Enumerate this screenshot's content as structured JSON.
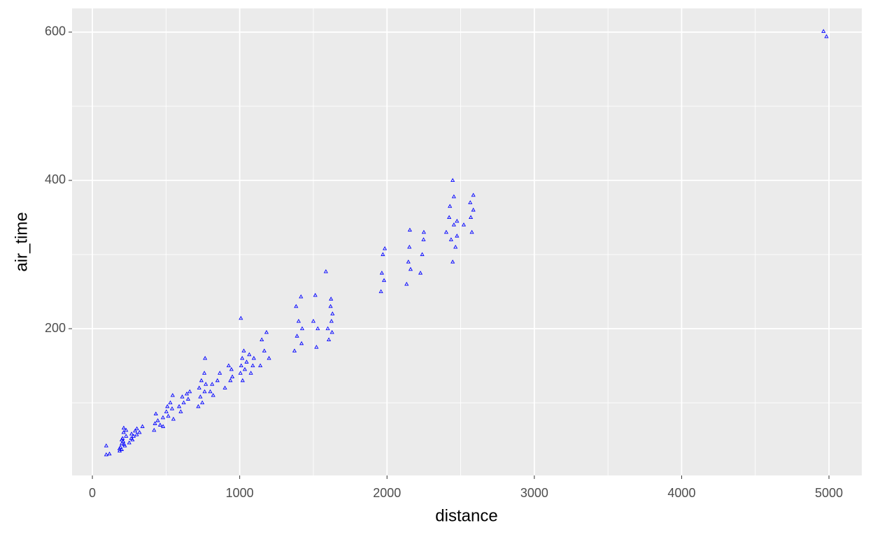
{
  "chart_data": {
    "type": "scatter",
    "x_label": "distance",
    "y_label": "air_time",
    "x": [
      94,
      94,
      116,
      185,
      190,
      199,
      200,
      205,
      209,
      212,
      213,
      220,
      229,
      229,
      184,
      199,
      215,
      250,
      264,
      266,
      272,
      280,
      290,
      301,
      302,
      320,
      340,
      419,
      425,
      431,
      444,
      460,
      479,
      480,
      502,
      509,
      515,
      529,
      541,
      545,
      550,
      589,
      600,
      610,
      620,
      641,
      650,
      661,
      719,
      725,
      733,
      740,
      746,
      760,
      762,
      765,
      770,
      800,
      813,
      820,
      849,
      865,
      900,
      925,
      937,
      944,
      950,
      1005,
      1008,
      1010,
      1017,
      1020,
      1028,
      1035,
      1047,
      1065,
      1076,
      1089,
      1096,
      1140,
      1150,
      1167,
      1182,
      1199,
      1372,
      1383,
      1389,
      1400,
      1416,
      1420,
      1424,
      1500,
      1513,
      1521,
      1530,
      1585,
      1598,
      1605,
      1617,
      1620,
      1623,
      1627,
      1630,
      1959,
      1965,
      1972,
      1980,
      1985,
      2133,
      2145,
      2152,
      2155,
      2160,
      2227,
      2239,
      2248,
      2250,
      2402,
      2422,
      2427,
      2435,
      2446,
      2454,
      2465,
      2475,
      2446,
      2475,
      2454,
      2521,
      2565,
      2576,
      2586,
      2569,
      2586,
      4963,
      4983
    ],
    "values": [
      30,
      42,
      31,
      35,
      40,
      37,
      45,
      52,
      48,
      60,
      66,
      42,
      55,
      63,
      38,
      50,
      44,
      46,
      52,
      58,
      50,
      55,
      62,
      57,
      65,
      60,
      68,
      63,
      72,
      85,
      76,
      70,
      80,
      68,
      88,
      95,
      82,
      100,
      92,
      110,
      78,
      95,
      88,
      108,
      100,
      112,
      105,
      115,
      95,
      120,
      108,
      130,
      100,
      140,
      115,
      160,
      125,
      115,
      125,
      110,
      130,
      140,
      120,
      150,
      130,
      145,
      135,
      140,
      214,
      150,
      160,
      130,
      170,
      145,
      155,
      165,
      140,
      150,
      160,
      150,
      185,
      170,
      195,
      160,
      170,
      230,
      190,
      210,
      243,
      180,
      200,
      210,
      245,
      175,
      200,
      277,
      200,
      185,
      230,
      240,
      210,
      195,
      220,
      250,
      275,
      300,
      265,
      308,
      260,
      290,
      310,
      333,
      280,
      275,
      300,
      320,
      330,
      330,
      350,
      365,
      320,
      400,
      340,
      310,
      345,
      290,
      325,
      378,
      340,
      370,
      330,
      360,
      350,
      380,
      601,
      594
    ],
    "color": "#0000ff",
    "xlim": [
      -138,
      5223
    ],
    "ylim": [
      2,
      632
    ],
    "xticks": [
      0,
      1000,
      2000,
      3000,
      4000,
      5000
    ],
    "yticks": [
      200,
      400,
      600
    ],
    "x_minor_ticks": [
      500,
      1500,
      2500,
      3500,
      4500
    ],
    "y_minor_ticks": [
      100,
      300,
      500
    ],
    "grid": true
  }
}
